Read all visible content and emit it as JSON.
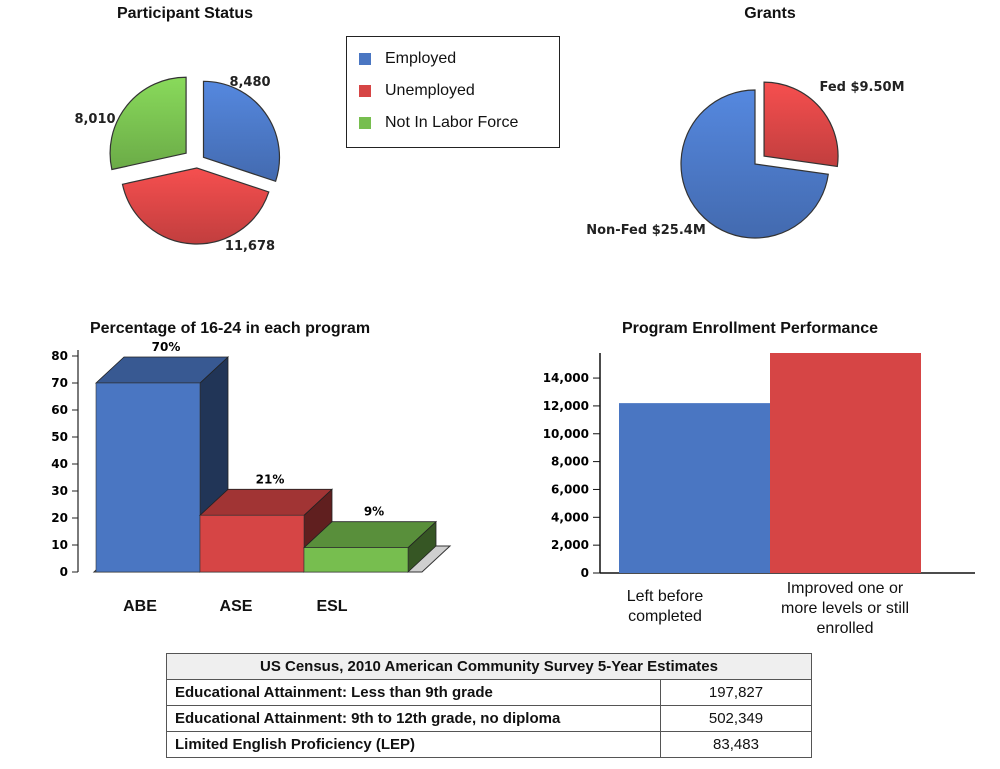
{
  "chart_data": [
    {
      "type": "pie",
      "title": "Participant Status",
      "slices": [
        {
          "label": "Employed",
          "value": 8480,
          "value_label": "8,480",
          "color": "#4A76C2"
        },
        {
          "label": "Unemployed",
          "value": 11678,
          "value_label": "11,678",
          "color": "#D64545"
        },
        {
          "label": "Not In Labor Force",
          "value": 8010,
          "value_label": "8,010",
          "color": "#77BE4F"
        }
      ],
      "legend": {
        "placement": "right",
        "entries": [
          "Employed",
          "Unemployed",
          "Not In Labor Force"
        ]
      }
    },
    {
      "type": "pie",
      "title": "Grants",
      "slices": [
        {
          "label": "Non-Fed",
          "value": 25.4,
          "value_label": "Non-Fed $25.4M",
          "color": "#4A76C2"
        },
        {
          "label": "Fed",
          "value": 9.5,
          "value_label": "Fed $9.50M",
          "color": "#D64545"
        }
      ]
    },
    {
      "type": "bar",
      "title": "Percentage of 16-24 in each program",
      "categories": [
        "ABE",
        "ASE",
        "ESL"
      ],
      "values": [
        70,
        21,
        9
      ],
      "value_labels": [
        "70%",
        "21%",
        "9%"
      ],
      "colors": [
        "#4A76C2",
        "#D64545",
        "#77BE4F"
      ],
      "ylim": [
        0,
        80
      ],
      "yticks": [
        "0",
        "10",
        "20",
        "30",
        "40",
        "50",
        "60",
        "70",
        "80"
      ]
    },
    {
      "type": "bar",
      "title": "Program Enrollment Performance",
      "categories": [
        "Left before completed",
        "Improved one or more levels or still enrolled"
      ],
      "values": [
        12200,
        15800
      ],
      "colors": [
        "#4A76C2",
        "#D64545"
      ],
      "ylim": [
        0,
        15800
      ],
      "yticks": [
        "0",
        "2,000",
        "4,000",
        "6,000",
        "8,000",
        "10,000",
        "12,000",
        "14,000"
      ]
    }
  ],
  "census_table": {
    "title": "US Census, 2010 American Community Survey 5-Year Estimates",
    "rows": [
      {
        "label": "Educational Attainment: Less than 9th grade",
        "value": "197,827"
      },
      {
        "label": "Educational Attainment: 9th to 12th grade, no diploma",
        "value": "502,349"
      },
      {
        "label": "Limited English Proficiency (LEP)",
        "value": "83,483"
      }
    ]
  }
}
